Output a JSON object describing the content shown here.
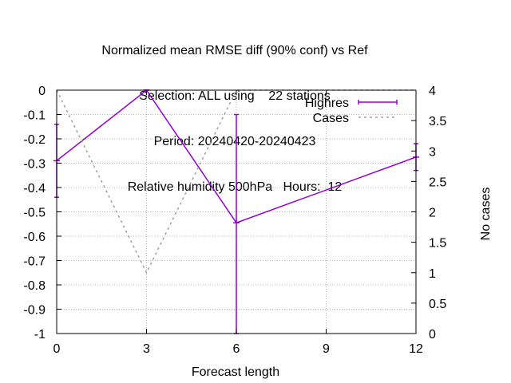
{
  "chart_data": {
    "type": "line",
    "title_lines": [
      "Normalized mean RMSE diff (90% conf) vs Ref",
      "Selection: ALL using    22 stations",
      "Period: 20240420-20240423",
      "Relative humidity 500hPa   Hours:  12"
    ],
    "xlabel": "Forecast length",
    "ylabel": "",
    "y2label": "No cases",
    "xlim": [
      0,
      12
    ],
    "ylim": [
      -1,
      0
    ],
    "y2lim": [
      0,
      4
    ],
    "x_ticks": [
      "0",
      "3",
      "6",
      "9",
      "12"
    ],
    "y_ticks": [
      "0",
      "-0.1",
      "-0.2",
      "-0.3",
      "-0.4",
      "-0.5",
      "-0.6",
      "-0.7",
      "-0.8",
      "-0.9",
      "-1"
    ],
    "y2_ticks": [
      "4",
      "3.5",
      "3",
      "2.5",
      "2",
      "1.5",
      "1",
      "0.5",
      "0"
    ],
    "grid": true,
    "legend_position": "top-right",
    "series": [
      {
        "name": "Highres",
        "axis": "y",
        "style": "line-errorbars",
        "color": "#9400d3",
        "x": [
          0,
          3,
          6,
          12
        ],
        "y": [
          -0.29,
          0.0,
          -0.545,
          -0.275
        ],
        "err_low": [
          -0.44,
          0.0,
          -1.0,
          -0.33
        ],
        "err_high": [
          -0.14,
          0.0,
          -0.1,
          -0.22
        ]
      },
      {
        "name": "Cases",
        "axis": "y2",
        "style": "dashed",
        "color": "#a0a0a0",
        "x": [
          0,
          3,
          6,
          12
        ],
        "y": [
          4,
          1,
          4,
          4
        ]
      }
    ]
  }
}
